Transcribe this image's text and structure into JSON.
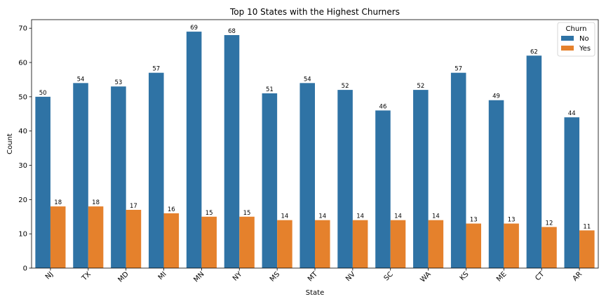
{
  "chart_data": {
    "type": "bar",
    "title": "Top 10 States with the Highest Churners",
    "xlabel": "State",
    "ylabel": "Count",
    "categories": [
      "NJ",
      "TX",
      "MD",
      "MI",
      "MN",
      "NY",
      "MS",
      "MT",
      "NV",
      "SC",
      "WA",
      "KS",
      "ME",
      "CT",
      "AR"
    ],
    "series": [
      {
        "name": "No",
        "color": "#2f73a5",
        "values": [
          50,
          54,
          53,
          57,
          69,
          68,
          51,
          54,
          52,
          46,
          52,
          57,
          49,
          62,
          44
        ]
      },
      {
        "name": "Yes",
        "color": "#e5812c",
        "values": [
          18,
          18,
          17,
          16,
          15,
          15,
          14,
          14,
          14,
          14,
          14,
          13,
          13,
          12,
          11
        ]
      }
    ],
    "ylim": [
      0,
      72.5
    ],
    "yticks": [
      0,
      10,
      20,
      30,
      40,
      50,
      60,
      70
    ],
    "legend": {
      "title": "Churn",
      "placement": "top-right"
    },
    "grid": false,
    "tick_label_rotation": "45"
  }
}
